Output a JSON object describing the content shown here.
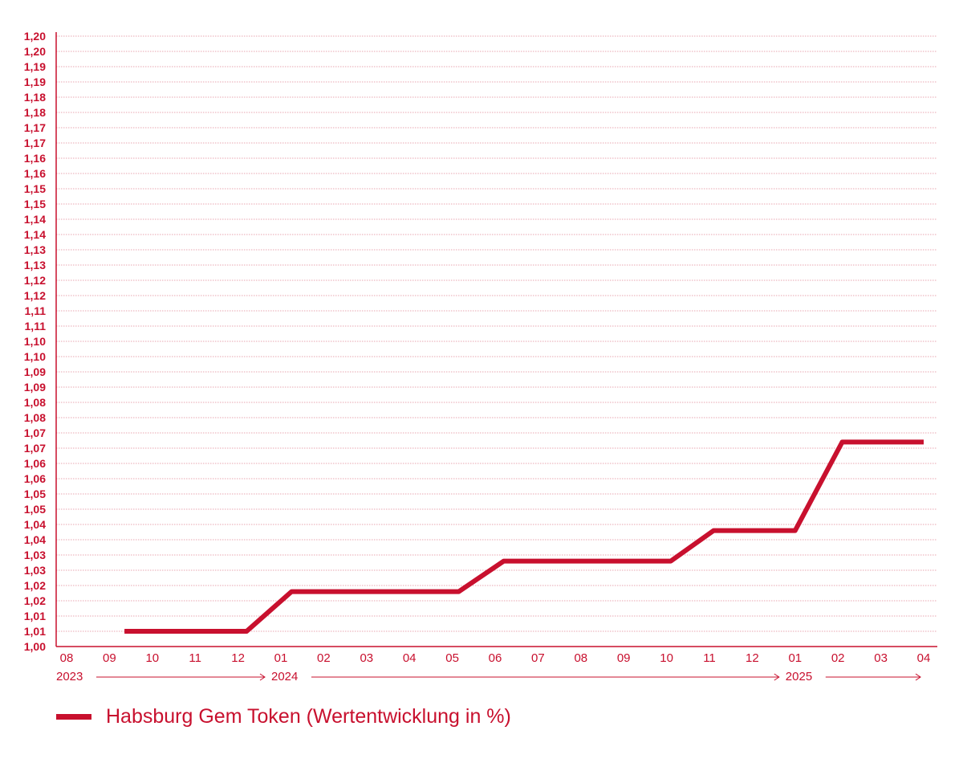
{
  "colors": {
    "accent": "#c8102e",
    "grid": "#e8a6b0"
  },
  "chart_data": {
    "type": "line",
    "title": "",
    "xlabel": "",
    "ylabel": "",
    "ylim": [
      1.0,
      1.2
    ],
    "grid": true,
    "y_tick_labels": [
      "1,20",
      "1,20",
      "1,19",
      "1,19",
      "1,18",
      "1,18",
      "1,17",
      "1,17",
      "1,16",
      "1,16",
      "1,15",
      "1,15",
      "1,14",
      "1,14",
      "1,13",
      "1,13",
      "1,12",
      "1,12",
      "1,11",
      "1,11",
      "1,10",
      "1,10",
      "1,09",
      "1,09",
      "1,08",
      "1,08",
      "1,07",
      "1,07",
      "1,06",
      "1,06",
      "1,05",
      "1,05",
      "1,04",
      "1,04",
      "1,03",
      "1,03",
      "1,02",
      "1,02",
      "1,01",
      "1,01",
      "1,00"
    ],
    "x_tick_labels": [
      "08",
      "09",
      "10",
      "11",
      "12",
      "01",
      "02",
      "03",
      "04",
      "05",
      "06",
      "07",
      "08",
      "09",
      "10",
      "11",
      "12",
      "01",
      "02",
      "03",
      "04"
    ],
    "year_markers": [
      {
        "label": "2023",
        "start_month": 0,
        "end_month": 5
      },
      {
        "label": "2024",
        "start_month": 5,
        "end_month": 17
      },
      {
        "label": "2025",
        "start_month": 17,
        "end_month": 20.3
      }
    ],
    "series": [
      {
        "name": "Habsburg Gem Token (Wertentwicklung in %)",
        "x": [
          1.35,
          4.2,
          5.25,
          9.15,
          10.2,
          14.1,
          15.1,
          17.0,
          18.1,
          20.0
        ],
        "y": [
          1.005,
          1.005,
          1.018,
          1.018,
          1.028,
          1.028,
          1.038,
          1.038,
          1.067,
          1.067
        ]
      }
    ]
  },
  "legend": {
    "label": "Habsburg Gem Token (Wertentwicklung in %)"
  }
}
